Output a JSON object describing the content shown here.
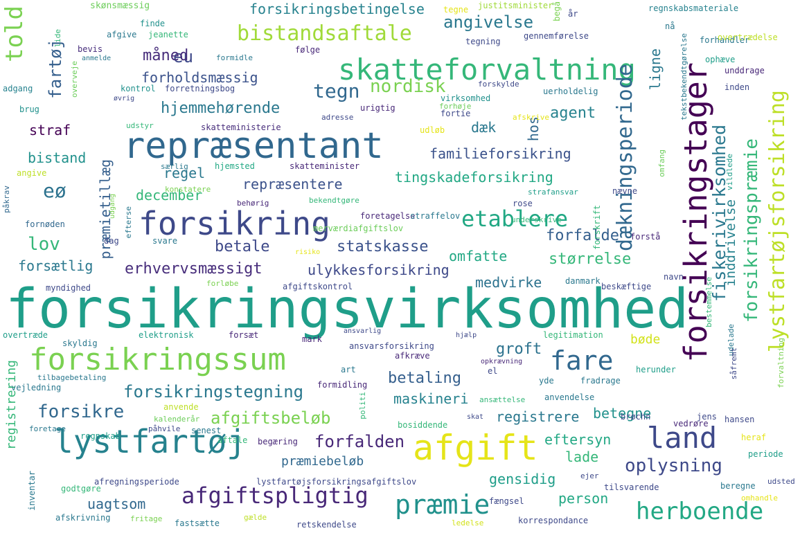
{
  "words": [
    {
      "text": "forsikringsvirksomhed",
      "color": "#1f9e89"
    },
    {
      "text": "repræsentant",
      "color": "#31688e"
    },
    {
      "text": "forsikring",
      "color": "#3e4989"
    },
    {
      "text": "forsikringssum",
      "color": "#7ad151"
    },
    {
      "text": "lystfartøj",
      "color": "#26828e"
    },
    {
      "text": "afgift",
      "color": "#e5e419"
    },
    {
      "text": "skatteforvaltning",
      "color": "#35b779"
    },
    {
      "text": "forsikringstager",
      "color": "#440154"
    },
    {
      "text": "land",
      "color": "#3e4989"
    },
    {
      "text": "præmie",
      "color": "#21918c"
    },
    {
      "text": "herboende",
      "color": "#22a884"
    },
    {
      "text": "afgiftspligtig",
      "color": "#482878"
    },
    {
      "text": "bistandsaftale",
      "color": "#a0da39"
    },
    {
      "text": "etablere",
      "color": "#22a884"
    },
    {
      "text": "fare",
      "color": "#31688e"
    },
    {
      "text": "told",
      "color": "#7ad151"
    },
    {
      "text": "dækningsperiode",
      "color": "#31688e"
    },
    {
      "text": "lystfartøjsforsikring",
      "color": "#bddf26"
    },
    {
      "text": "forsikringspræmie",
      "color": "#35b779"
    },
    {
      "text": "fiskerivirksomhed",
      "color": "#2a788e"
    },
    {
      "text": "forsikringstegning",
      "color": "#2a788e"
    },
    {
      "text": "afgiftsbeløb",
      "color": "#7ad151"
    },
    {
      "text": "forsikre",
      "color": "#31688e"
    },
    {
      "text": "forfalden",
      "color": "#482878"
    },
    {
      "text": "oplysning",
      "color": "#3e4989"
    },
    {
      "text": "fartøj",
      "color": "#355f8d"
    },
    {
      "text": "tegn",
      "color": "#31688e"
    },
    {
      "text": "nordisk",
      "color": "#7ad151"
    },
    {
      "text": "angivelse",
      "color": "#2a788e"
    },
    {
      "text": "eu",
      "color": "#3e4989"
    },
    {
      "text": "forsikringsbetingelse",
      "color": "#26828e"
    },
    {
      "text": "måned",
      "color": "#472d7b"
    },
    {
      "text": "forholdsmæssig",
      "color": "#3b528b"
    },
    {
      "text": "hjemmehørende",
      "color": "#2a788e"
    },
    {
      "text": "straf",
      "color": "#440154"
    },
    {
      "text": "bistand",
      "color": "#21918c"
    },
    {
      "text": "regel",
      "color": "#2a788e"
    },
    {
      "text": "eø",
      "color": "#2c728e"
    },
    {
      "text": "december",
      "color": "#35b779"
    },
    {
      "text": "præmietillæg",
      "color": "#355f8d"
    },
    {
      "text": "lov",
      "color": "#35b779"
    },
    {
      "text": "forsætlig",
      "color": "#2a788e"
    },
    {
      "text": "erhvervsmæssigt",
      "color": "#472d7b"
    },
    {
      "text": "betale",
      "color": "#3e4989"
    },
    {
      "text": "repræsentere",
      "color": "#3b528b"
    },
    {
      "text": "tingskadeforsikring",
      "color": "#22a884"
    },
    {
      "text": "familieforsikring",
      "color": "#3b528b"
    },
    {
      "text": "agent",
      "color": "#26828e"
    },
    {
      "text": "dæk",
      "color": "#2a788e"
    },
    {
      "text": "hos",
      "color": "#31688e"
    },
    {
      "text": "statskasse",
      "color": "#3b528b"
    },
    {
      "text": "forfalde",
      "color": "#355f8d"
    },
    {
      "text": "omfatte",
      "color": "#22a884"
    },
    {
      "text": "størrelse",
      "color": "#35b779"
    },
    {
      "text": "ulykkesforsikring",
      "color": "#3e4989"
    },
    {
      "text": "medvirke",
      "color": "#2c728e"
    },
    {
      "text": "betaling",
      "color": "#355f8d"
    },
    {
      "text": "groft",
      "color": "#2c728e"
    },
    {
      "text": "bøde",
      "color": "#d2e21b"
    },
    {
      "text": "maskineri",
      "color": "#26828e"
    },
    {
      "text": "registrere",
      "color": "#2a788e"
    },
    {
      "text": "eftersyn",
      "color": "#22a884"
    },
    {
      "text": "betegne",
      "color": "#21918c"
    },
    {
      "text": "lade",
      "color": "#35b779"
    },
    {
      "text": "gensidig",
      "color": "#1f9e89"
    },
    {
      "text": "person",
      "color": "#22a884"
    },
    {
      "text": "uagtsom",
      "color": "#31688e"
    },
    {
      "text": "præmiebeløb",
      "color": "#31688e"
    },
    {
      "text": "registrering",
      "color": "#35b779"
    },
    {
      "text": "inddrivelse",
      "color": "#26828e"
    },
    {
      "text": "ligne",
      "color": "#2a788e"
    },
    {
      "text": "skønsmæssig",
      "color": "#6ccd5a"
    },
    {
      "text": "tegne",
      "color": "#e5e419"
    },
    {
      "text": "justitsminister",
      "color": "#a0da39"
    },
    {
      "text": "begå",
      "color": "#7ad151"
    },
    {
      "text": "år",
      "color": "#3e4989"
    },
    {
      "text": "regnskabsmateriale",
      "color": "#26828e"
    },
    {
      "text": "finde",
      "color": "#21918c"
    },
    {
      "text": "afgive",
      "color": "#2a788e"
    },
    {
      "text": "jeanette",
      "color": "#35b779"
    },
    {
      "text": "gennemførelse",
      "color": "#3e4989"
    },
    {
      "text": "nå",
      "color": "#2a788e"
    },
    {
      "text": "forhandler",
      "color": "#2a788e"
    },
    {
      "text": "overtrædelse",
      "color": "#bddf26"
    },
    {
      "text": "tegning",
      "color": "#3e4989"
    },
    {
      "text": "lide",
      "color": "#35b779"
    },
    {
      "text": "bevis",
      "color": "#472d7b"
    },
    {
      "text": "formidle",
      "color": "#2a788e"
    },
    {
      "text": "følge",
      "color": "#482878"
    },
    {
      "text": "ophæve",
      "color": "#1f9e89"
    },
    {
      "text": "unddrage",
      "color": "#482878"
    },
    {
      "text": "anmelde",
      "color": "#2a788e"
    },
    {
      "text": "overveje",
      "color": "#6ccd5a"
    },
    {
      "text": "adgang",
      "color": "#26828e"
    },
    {
      "text": "kontrol",
      "color": "#21918c"
    },
    {
      "text": "forretningsbog",
      "color": "#3e4989"
    },
    {
      "text": "forskylde",
      "color": "#3e4989"
    },
    {
      "text": "uerholdelig",
      "color": "#2a788e"
    },
    {
      "text": "inden",
      "color": "#3e4989"
    },
    {
      "text": "øvrig",
      "color": "#3e4989"
    },
    {
      "text": "virksomhed",
      "color": "#21918c"
    },
    {
      "text": "forhøje",
      "color": "#6ccd5a"
    },
    {
      "text": "brug",
      "color": "#21918c"
    },
    {
      "text": "urigtig",
      "color": "#482878"
    },
    {
      "text": "fortie",
      "color": "#3e4989"
    },
    {
      "text": "adresse",
      "color": "#3e4989"
    },
    {
      "text": "udstyr",
      "color": "#35b779"
    },
    {
      "text": "skatteministerie",
      "color": "#472d7b"
    },
    {
      "text": "udløb",
      "color": "#e5e419"
    },
    {
      "text": "afskrive",
      "color": "#e5e419"
    },
    {
      "text": "tekstbekendtgørelse",
      "color": "#2a788e"
    },
    {
      "text": "vildlede",
      "color": "#1f9e89"
    },
    {
      "text": "særlig",
      "color": "#2a788e"
    },
    {
      "text": "hjemsted",
      "color": "#22a884"
    },
    {
      "text": "skatteminister",
      "color": "#482878"
    },
    {
      "text": "angive",
      "color": "#bddf26"
    },
    {
      "text": "omfang",
      "color": "#6ccd5a"
    },
    {
      "text": "nævne",
      "color": "#3e4989"
    },
    {
      "text": "strafansvar",
      "color": "#1f9e89"
    },
    {
      "text": "konstatere",
      "color": "#7ad151"
    },
    {
      "text": "behørig",
      "color": "#482878"
    },
    {
      "text": "bekendtgøre",
      "color": "#35b779"
    },
    {
      "text": "foretagelse",
      "color": "#482878"
    },
    {
      "text": "straffelov",
      "color": "#2a788e"
    },
    {
      "text": "rose",
      "color": "#3e4989"
    },
    {
      "text": "forskrift",
      "color": "#35b779"
    },
    {
      "text": "påkrav",
      "color": "#31688e"
    },
    {
      "text": "fornøden",
      "color": "#31688e"
    },
    {
      "text": "udgang",
      "color": "#7ad151"
    },
    {
      "text": "efterse",
      "color": "#2a788e"
    },
    {
      "text": "underskrive",
      "color": "#35b779"
    },
    {
      "text": "merværdiafgiftslov",
      "color": "#6ccd5a"
    },
    {
      "text": "dag",
      "color": "#3e4989"
    },
    {
      "text": "svare",
      "color": "#2a788e"
    },
    {
      "text": "risiko",
      "color": "#e5e419"
    },
    {
      "text": "forstå",
      "color": "#482878"
    },
    {
      "text": "myndighed",
      "color": "#3e4989"
    },
    {
      "text": "forløbe",
      "color": "#7ad151"
    },
    {
      "text": "afgiftskontrol",
      "color": "#3e4989"
    },
    {
      "text": "danmark",
      "color": "#2a788e"
    },
    {
      "text": "beskæftige",
      "color": "#3e4989"
    },
    {
      "text": "navn",
      "color": "#3e4989"
    },
    {
      "text": "bestemmelse",
      "color": "#35b779"
    },
    {
      "text": "overtræde",
      "color": "#1f9e89"
    },
    {
      "text": "forsæt",
      "color": "#482878"
    },
    {
      "text": "elektronisk",
      "color": "#1f9e89"
    },
    {
      "text": "mark",
      "color": "#482878"
    },
    {
      "text": "legitimation",
      "color": "#35b779"
    },
    {
      "text": "skyldig",
      "color": "#2a788e"
    },
    {
      "text": "ansvarlig",
      "color": "#3e4989"
    },
    {
      "text": "hjælp",
      "color": "#3e4989"
    },
    {
      "text": "udelade",
      "color": "#2a788e"
    },
    {
      "text": "ansvarsforsikring",
      "color": "#3e4989"
    },
    {
      "text": "afkræve",
      "color": "#482878"
    },
    {
      "text": "opkrævning",
      "color": "#482878"
    },
    {
      "text": "art",
      "color": "#2a788e"
    },
    {
      "text": "el",
      "color": "#3e4989"
    },
    {
      "text": "herunder",
      "color": "#1f9e89"
    },
    {
      "text": "såfremt",
      "color": "#3e4989"
    },
    {
      "text": "forvaltning",
      "color": "#7ad151"
    },
    {
      "text": "tilbagebetaling",
      "color": "#2a788e"
    },
    {
      "text": "formidling",
      "color": "#482878"
    },
    {
      "text": "yde",
      "color": "#2a788e"
    },
    {
      "text": "fradrage",
      "color": "#2a788e"
    },
    {
      "text": "vejledning",
      "color": "#2a788e"
    },
    {
      "text": "politi",
      "color": "#35b779"
    },
    {
      "text": "ansættelse",
      "color": "#35b779"
    },
    {
      "text": "anvendelse",
      "color": "#2a788e"
    },
    {
      "text": "anvende",
      "color": "#bddf26"
    },
    {
      "text": "kalenderår",
      "color": "#6ccd5a"
    },
    {
      "text": "bosiddende",
      "color": "#35b779"
    },
    {
      "text": "skat",
      "color": "#3e4989"
    },
    {
      "text": "brøchn",
      "color": "#3e4989"
    },
    {
      "text": "jens",
      "color": "#3e4989"
    },
    {
      "text": "foretage",
      "color": "#2a788e"
    },
    {
      "text": "påhvile",
      "color": "#3e4989"
    },
    {
      "text": "senest",
      "color": "#2a788e"
    },
    {
      "text": "vedrøre",
      "color": "#482878"
    },
    {
      "text": "hansen",
      "color": "#3e4989"
    },
    {
      "text": "regnskab",
      "color": "#1f9e89"
    },
    {
      "text": "aftale",
      "color": "#35b779"
    },
    {
      "text": "begæring",
      "color": "#482878"
    },
    {
      "text": "heraf",
      "color": "#e5e419"
    },
    {
      "text": "periode",
      "color": "#1f9e89"
    },
    {
      "text": "inventar",
      "color": "#2a788e"
    },
    {
      "text": "afregningsperiode",
      "color": "#3e4989"
    },
    {
      "text": "lystfartøjsforsikringsafgiftslov",
      "color": "#3e4989"
    },
    {
      "text": "ejer",
      "color": "#3e4989"
    },
    {
      "text": "udsted",
      "color": "#3e4989"
    },
    {
      "text": "godtgøre",
      "color": "#35b779"
    },
    {
      "text": "tilsvarende",
      "color": "#3e4989"
    },
    {
      "text": "beregne",
      "color": "#2a788e"
    },
    {
      "text": "fængsel",
      "color": "#3e4989"
    },
    {
      "text": "omhandle",
      "color": "#e5e419"
    },
    {
      "text": "afskrivning",
      "color": "#2a788e"
    },
    {
      "text": "fritage",
      "color": "#7ad151"
    },
    {
      "text": "fastsætte",
      "color": "#2a788e"
    },
    {
      "text": "gælde",
      "color": "#bddf26"
    },
    {
      "text": "retskendelse",
      "color": "#3e4989"
    },
    {
      "text": "ledelse",
      "color": "#d2e21b"
    },
    {
      "text": "korrespondance",
      "color": "#3e4989"
    }
  ]
}
